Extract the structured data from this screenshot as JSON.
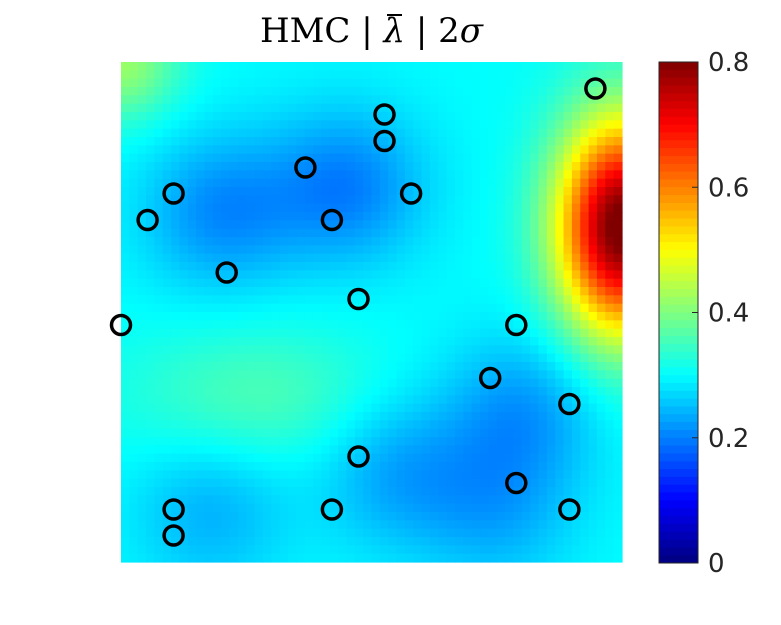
{
  "title": {
    "prefix": "HMC | ",
    "lambda": "λ",
    "middle": " | 2",
    "sigma": "σ"
  },
  "chart_data": {
    "type": "heatmap",
    "title": "HMC | λ̄ | 2σ",
    "xlabel": "",
    "ylabel": "",
    "colormap": "jet",
    "grid": false,
    "colorbar": {
      "position": "right",
      "range": [
        0,
        0.8
      ],
      "ticks": [
        0,
        0.2,
        0.4,
        0.6,
        0.8
      ],
      "tick_labels": [
        "0",
        "0.2",
        "0.4",
        "0.6",
        "0.8"
      ]
    },
    "field": {
      "x_range": [
        0,
        1
      ],
      "y_range": [
        0,
        1
      ],
      "base_value": 0.3,
      "peaks": [
        {
          "x": 1.0,
          "y": 0.67,
          "value": 0.82
        },
        {
          "x": 0.27,
          "y": 0.33,
          "value": 0.36
        },
        {
          "x": 0.0,
          "y": 1.0,
          "value": 0.42
        }
      ],
      "lows": [
        {
          "x": 0.45,
          "y": 0.75,
          "value": 0.2
        },
        {
          "x": 0.2,
          "y": 0.7,
          "value": 0.21
        },
        {
          "x": 0.8,
          "y": 0.3,
          "value": 0.22
        },
        {
          "x": 0.55,
          "y": 0.18,
          "value": 0.23
        },
        {
          "x": 0.18,
          "y": 0.1,
          "value": 0.24
        },
        {
          "x": 0.75,
          "y": 0.1,
          "value": 0.24
        }
      ]
    },
    "markers": {
      "style": "open-circle",
      "color": "#000000",
      "points": [
        {
          "x": 0.947,
          "y": 0.947
        },
        {
          "x": 0.526,
          "y": 0.895
        },
        {
          "x": 0.526,
          "y": 0.842
        },
        {
          "x": 0.368,
          "y": 0.789
        },
        {
          "x": 0.105,
          "y": 0.737
        },
        {
          "x": 0.579,
          "y": 0.737
        },
        {
          "x": 0.053,
          "y": 0.684
        },
        {
          "x": 0.421,
          "y": 0.684
        },
        {
          "x": 0.211,
          "y": 0.579
        },
        {
          "x": 0.474,
          "y": 0.526
        },
        {
          "x": 0.0,
          "y": 0.474
        },
        {
          "x": 0.789,
          "y": 0.474
        },
        {
          "x": 0.737,
          "y": 0.368
        },
        {
          "x": 0.895,
          "y": 0.316
        },
        {
          "x": 0.474,
          "y": 0.211
        },
        {
          "x": 0.789,
          "y": 0.158
        },
        {
          "x": 0.105,
          "y": 0.105
        },
        {
          "x": 0.421,
          "y": 0.105
        },
        {
          "x": 0.895,
          "y": 0.105
        },
        {
          "x": 0.105,
          "y": 0.053
        }
      ]
    }
  }
}
